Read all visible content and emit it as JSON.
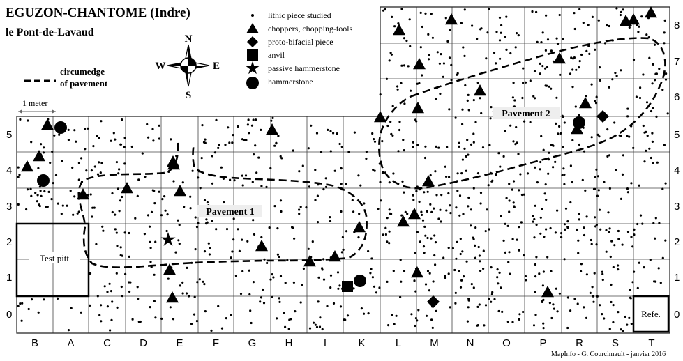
{
  "title": "EGUZON-CHANTOME (Indre)",
  "subtitle": "le Pont-de-Lavaud",
  "credit": "MapInfo - G. Courcimault - janvier 2016",
  "legend": {
    "pavement_line_1": "circumedge",
    "pavement_line_2": "of pavement",
    "scale": "1 meter",
    "items": [
      {
        "symbol": "dot",
        "label": "lithic piece studied"
      },
      {
        "symbol": "triangle",
        "label": "choppers, chopping-tools"
      },
      {
        "symbol": "diamond",
        "label": "proto-bifacial piece"
      },
      {
        "symbol": "square",
        "label": "anvil"
      },
      {
        "symbol": "star",
        "label": "passive hammerstone"
      },
      {
        "symbol": "circle",
        "label": "hammerstone"
      }
    ]
  },
  "compass": {
    "n": "N",
    "s": "S",
    "e": "E",
    "w": "W"
  },
  "columns": [
    "B",
    "A",
    "C",
    "D",
    "E",
    "F",
    "G",
    "H",
    "I",
    "K",
    "L",
    "M",
    "N",
    "O",
    "P",
    "R",
    "S",
    "T"
  ],
  "rows_left": [
    "0",
    "1",
    "2",
    "3",
    "4",
    "5"
  ],
  "rows_right": [
    "0",
    "1",
    "2",
    "3",
    "4",
    "5",
    "6",
    "7",
    "8"
  ],
  "labels": {
    "pavement1": "Pavement 1",
    "pavement2": "Pavement 2",
    "test_pit": "Test pitt",
    "refe": "Refe."
  }
}
